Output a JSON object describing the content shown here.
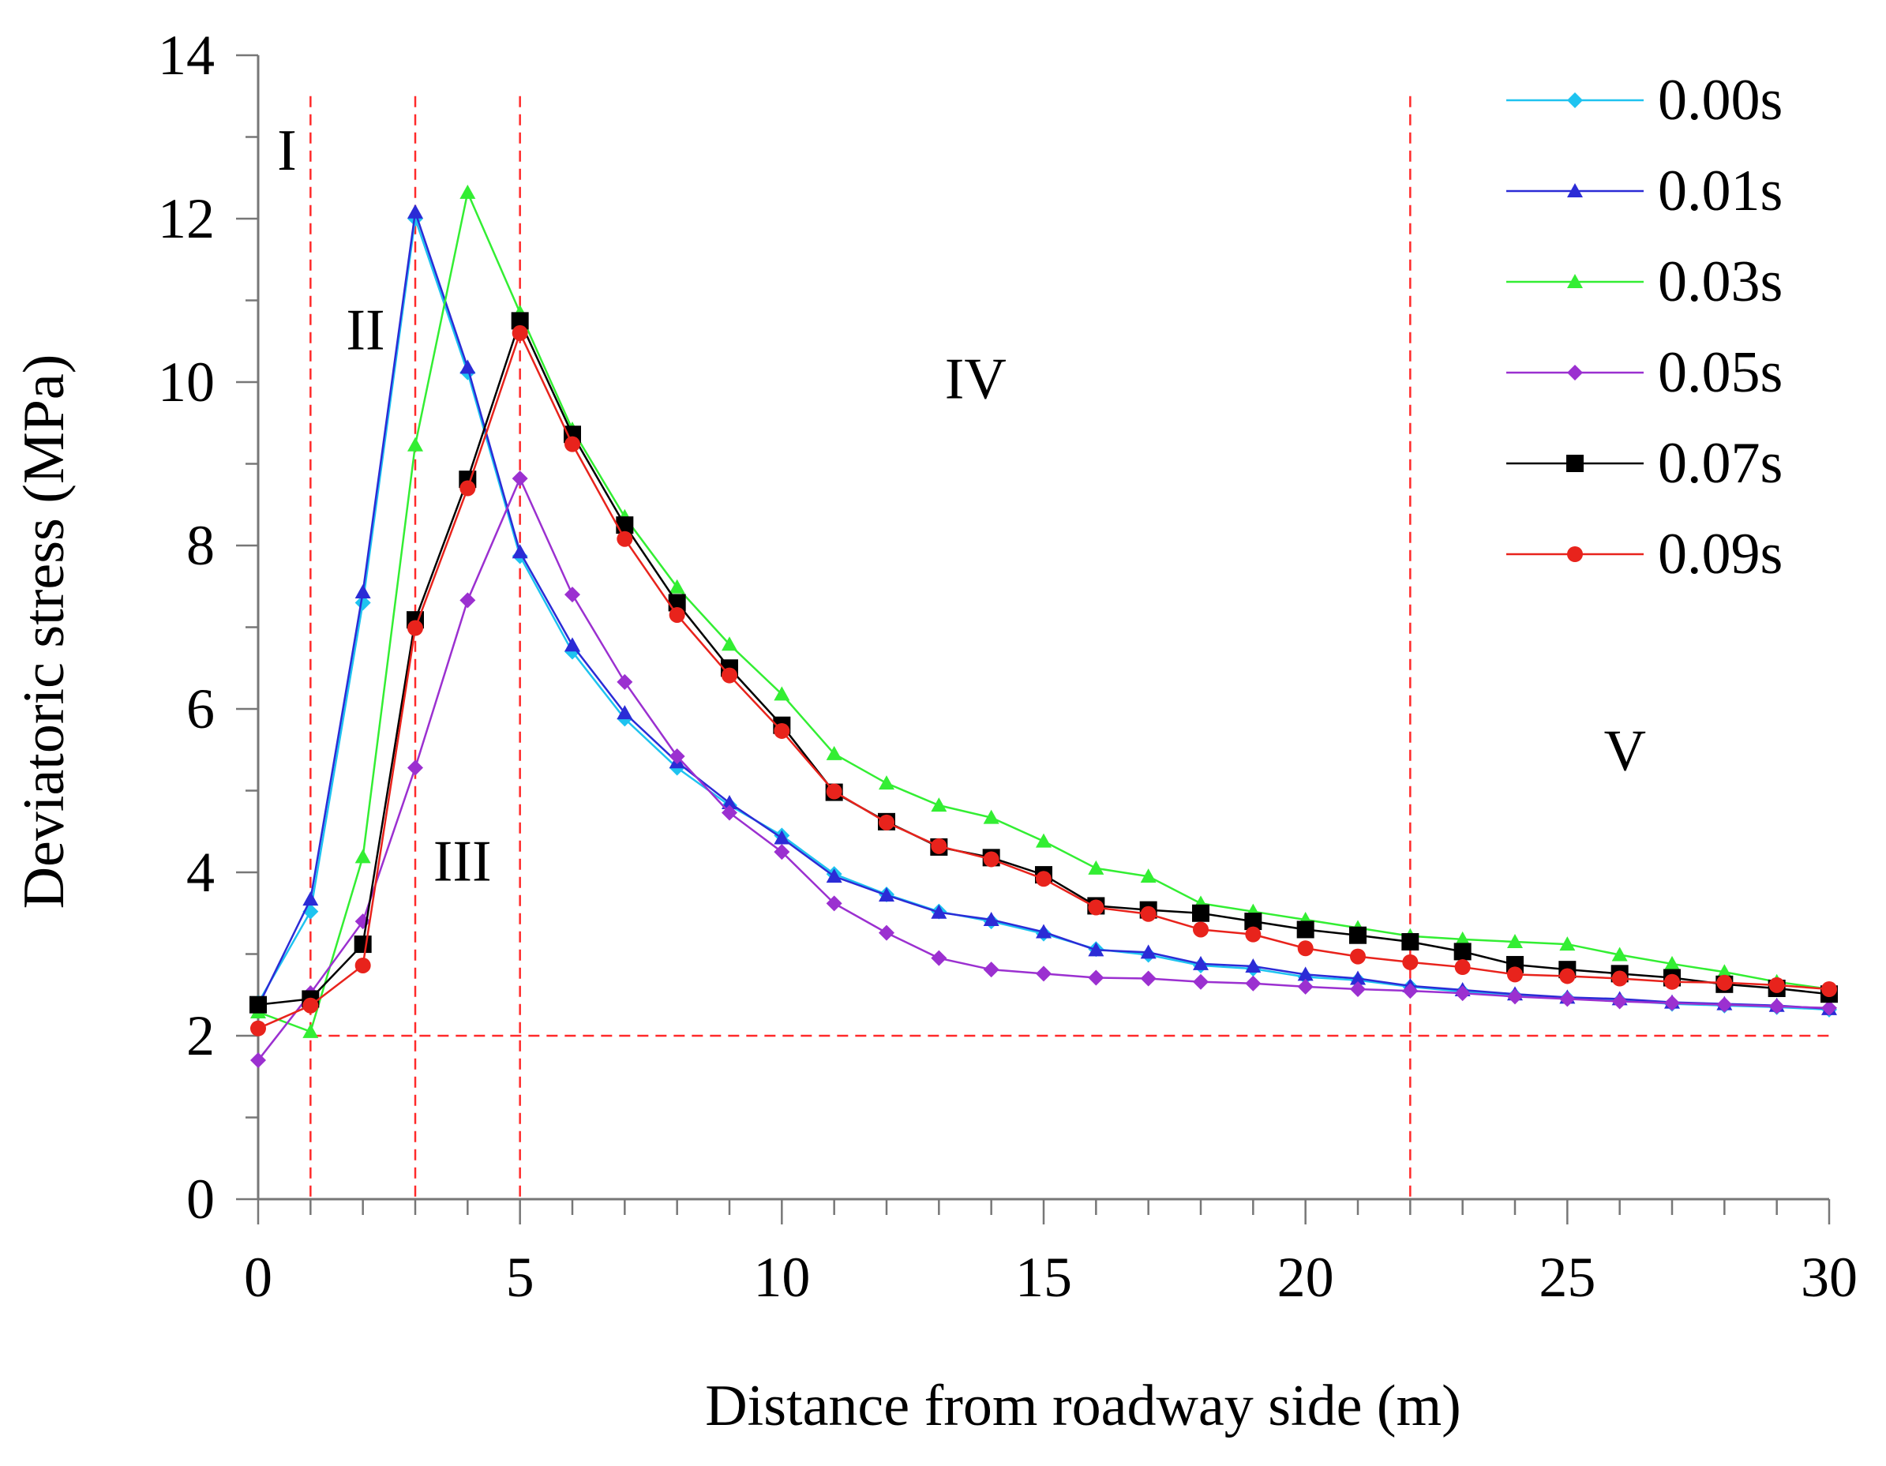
{
  "chart_data": {
    "type": "line",
    "xlabel": "Distance from roadway side (m)",
    "ylabel": "Deviatoric stress (MPa)",
    "xlim": [
      0,
      30
    ],
    "ylim": [
      0,
      14
    ],
    "x_ticks": [
      0,
      5,
      10,
      15,
      20,
      25,
      30
    ],
    "y_ticks": [
      0,
      2,
      4,
      6,
      8,
      10,
      12,
      14
    ],
    "legend_position": "top-right",
    "x": [
      0,
      1,
      2,
      3,
      4,
      5,
      6,
      7,
      8,
      9,
      10,
      11,
      12,
      13,
      14,
      15,
      16,
      17,
      18,
      19,
      20,
      21,
      22,
      23,
      24,
      25,
      26,
      27,
      28,
      29,
      30
    ],
    "series": [
      {
        "name": "0.00s",
        "color": "#1ec3f0",
        "marker": "diamond",
        "values": [
          2.4,
          3.52,
          7.3,
          12.0,
          10.12,
          7.87,
          6.7,
          5.88,
          5.28,
          4.82,
          4.45,
          3.98,
          3.73,
          3.52,
          3.4,
          3.25,
          3.06,
          2.99,
          2.86,
          2.82,
          2.72,
          2.68,
          2.6,
          2.54,
          2.49,
          2.46,
          2.43,
          2.39,
          2.37,
          2.35,
          2.32
        ]
      },
      {
        "name": "0.01s",
        "color": "#2b2bd6",
        "marker": "triangle",
        "values": [
          2.36,
          3.67,
          7.43,
          12.08,
          10.18,
          7.92,
          6.78,
          5.95,
          5.35,
          4.85,
          4.42,
          3.95,
          3.72,
          3.51,
          3.42,
          3.27,
          3.05,
          3.02,
          2.88,
          2.85,
          2.75,
          2.7,
          2.61,
          2.56,
          2.51,
          2.47,
          2.45,
          2.41,
          2.39,
          2.37,
          2.33
        ]
      },
      {
        "name": "0.03s",
        "color": "#33ee33",
        "marker": "triangle",
        "values": [
          2.29,
          2.05,
          4.19,
          9.23,
          12.32,
          10.85,
          9.42,
          8.35,
          7.49,
          6.79,
          6.18,
          5.45,
          5.09,
          4.82,
          4.67,
          4.38,
          4.05,
          3.95,
          3.62,
          3.52,
          3.42,
          3.32,
          3.22,
          3.18,
          3.15,
          3.12,
          2.99,
          2.88,
          2.78,
          2.66,
          2.57
        ]
      },
      {
        "name": "0.05s",
        "color": "#9b30d0",
        "marker": "diamond",
        "values": [
          1.7,
          2.52,
          3.4,
          5.28,
          7.33,
          8.82,
          7.4,
          6.33,
          5.42,
          4.73,
          4.25,
          3.62,
          3.26,
          2.95,
          2.81,
          2.76,
          2.71,
          2.7,
          2.66,
          2.64,
          2.6,
          2.57,
          2.55,
          2.52,
          2.48,
          2.45,
          2.42,
          2.4,
          2.38,
          2.36,
          2.34
        ]
      },
      {
        "name": "0.07s",
        "color": "#000000",
        "marker": "square",
        "values": [
          2.38,
          2.45,
          3.12,
          7.09,
          8.81,
          10.75,
          9.36,
          8.25,
          7.3,
          6.5,
          5.8,
          4.98,
          4.62,
          4.31,
          4.18,
          3.97,
          3.59,
          3.54,
          3.5,
          3.4,
          3.3,
          3.23,
          3.15,
          3.03,
          2.87,
          2.81,
          2.76,
          2.71,
          2.63,
          2.58,
          2.51
        ]
      },
      {
        "name": "0.09s",
        "color": "#e8231c",
        "marker": "circle",
        "values": [
          2.09,
          2.37,
          2.86,
          6.99,
          8.7,
          10.6,
          9.24,
          8.08,
          7.15,
          6.41,
          5.73,
          4.99,
          4.61,
          4.32,
          4.16,
          3.92,
          3.57,
          3.49,
          3.3,
          3.24,
          3.07,
          2.97,
          2.9,
          2.84,
          2.75,
          2.73,
          2.7,
          2.66,
          2.65,
          2.62,
          2.57
        ]
      }
    ],
    "divider_color": "#ff2a2a",
    "vertical_dividers_x": [
      1,
      3,
      5,
      22
    ],
    "horizontal_divider_y": 2.0,
    "regions": [
      {
        "label": "I",
        "x": 0.55,
        "y": 12.6
      },
      {
        "label": "II",
        "x": 2.05,
        "y": 10.4
      },
      {
        "label": "III",
        "x": 3.9,
        "y": 3.9
      },
      {
        "label": "IV",
        "x": 13.7,
        "y": 9.8
      },
      {
        "label": "V",
        "x": 26.1,
        "y": 5.25
      }
    ]
  }
}
